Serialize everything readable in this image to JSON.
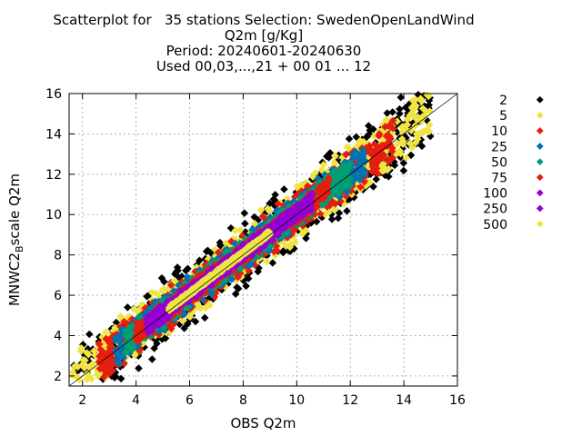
{
  "chart_data": {
    "type": "scatter",
    "title_lines": [
      "Scatterplot for   35 stations Selection: SwedenOpenLandWind",
      "Q2m [g/Kg]",
      "Period: 20240601-20240630",
      "Used 00,03,...,21 + 00 01 ... 12"
    ],
    "xlabel": "OBS Q2m",
    "ylabel_main": "MNWC2",
    "ylabel_sub": "B",
    "ylabel_tail": "scale Q2m",
    "xlim": [
      1.5,
      16
    ],
    "ylim": [
      1.5,
      16
    ],
    "x_ticks": [
      2,
      4,
      6,
      8,
      10,
      12,
      14,
      16
    ],
    "y_ticks": [
      2,
      4,
      6,
      8,
      10,
      12,
      14,
      16
    ],
    "grid": true,
    "diagonal": true,
    "legend_position": "right",
    "legend": [
      {
        "label": "2",
        "color": "#000000"
      },
      {
        "label": "5",
        "color": "#f0e442"
      },
      {
        "label": "10",
        "color": "#e51e10"
      },
      {
        "label": "25",
        "color": "#0072b2"
      },
      {
        "label": "50",
        "color": "#009e73"
      },
      {
        "label": "75",
        "color": "#e51e10"
      },
      {
        "label": "100",
        "color": "#9400d3"
      },
      {
        "label": "250",
        "color": "#9400d3"
      },
      {
        "label": "500",
        "color": "#f0e442"
      }
    ],
    "density_bands": [
      {
        "label": "2",
        "color": "#000000",
        "width": 2.0,
        "xmin": 1.6,
        "xmax": 15.0
      },
      {
        "label": "5",
        "color": "#f0e442",
        "width": 1.55,
        "xmin": 1.6,
        "xmax": 15.0
      },
      {
        "label": "10",
        "color": "#e51e10",
        "width": 1.2,
        "xmin": 2.6,
        "xmax": 13.6
      },
      {
        "label": "25",
        "color": "#0072b2",
        "width": 0.95,
        "xmin": 3.2,
        "xmax": 12.6
      },
      {
        "label": "50",
        "color": "#009e73",
        "width": 0.75,
        "xmin": 3.6,
        "xmax": 12.0
      },
      {
        "label": "75",
        "color": "#e51e10",
        "width": 0.58,
        "xmin": 4.0,
        "xmax": 11.2
      },
      {
        "label": "100",
        "color": "#9400d3",
        "width": 0.48,
        "xmin": 4.4,
        "xmax": 10.6
      },
      {
        "label": "250",
        "color": "#9400d3",
        "width": 0.32,
        "xmin": 4.8,
        "xmax": 9.8
      },
      {
        "label": "500",
        "color": "#f0e442",
        "width": 0.14,
        "xmin": 5.2,
        "xmax": 9.0
      }
    ]
  }
}
